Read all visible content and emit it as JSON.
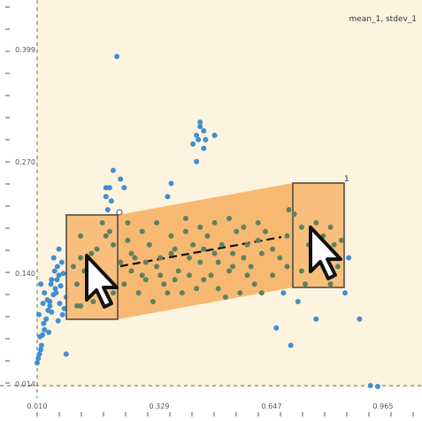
{
  "header": {
    "corner_label": "mean_1, stdev_1"
  },
  "chart_data": {
    "type": "scatter",
    "x_ticks": [
      "0.010",
      "0.329",
      "0.647",
      "0.965"
    ],
    "y_ticks": [
      "0.014",
      "0.140",
      "0.270",
      "0.399"
    ],
    "xlim": [
      0.01,
      0.965
    ],
    "ylim": [
      0.014,
      0.399
    ],
    "grid": false,
    "colors": {
      "points": "#3f8fd2",
      "band": "#f6b66e",
      "overlap_points": "#5f8060",
      "frame": "#444444"
    },
    "points": [
      [
        0.01,
        0.04
      ],
      [
        0.013,
        0.045
      ],
      [
        0.016,
        0.05
      ],
      [
        0.02,
        0.055
      ],
      [
        0.022,
        0.06
      ],
      [
        0.018,
        0.07
      ],
      [
        0.025,
        0.072
      ],
      [
        0.03,
        0.078
      ],
      [
        0.028,
        0.085
      ],
      [
        0.035,
        0.09
      ],
      [
        0.015,
        0.095
      ],
      [
        0.04,
        0.1
      ],
      [
        0.045,
        0.105
      ],
      [
        0.05,
        0.098
      ],
      [
        0.038,
        0.112
      ],
      [
        0.055,
        0.118
      ],
      [
        0.06,
        0.125
      ],
      [
        0.048,
        0.13
      ],
      [
        0.065,
        0.135
      ],
      [
        0.07,
        0.14
      ],
      [
        0.058,
        0.145
      ],
      [
        0.062,
        0.12
      ],
      [
        0.072,
        0.108
      ],
      [
        0.08,
        0.095
      ],
      [
        0.068,
        0.088
      ],
      [
        0.085,
        0.102
      ],
      [
        0.09,
        0.115
      ],
      [
        0.075,
        0.128
      ],
      [
        0.066,
        0.15
      ],
      [
        0.056,
        0.16
      ],
      [
        0.07,
        0.17
      ],
      [
        0.078,
        0.155
      ],
      [
        0.082,
        0.142
      ],
      [
        0.03,
        0.12
      ],
      [
        0.026,
        0.108
      ],
      [
        0.02,
        0.13
      ],
      [
        0.09,
        0.05
      ],
      [
        0.05,
        0.135
      ],
      [
        0.045,
        0.11
      ],
      [
        0.042,
        0.075
      ],
      [
        0.11,
        0.15
      ],
      [
        0.12,
        0.13
      ],
      [
        0.13,
        0.16
      ],
      [
        0.14,
        0.145
      ],
      [
        0.16,
        0.155
      ],
      [
        0.175,
        0.17
      ],
      [
        0.19,
        0.2
      ],
      [
        0.2,
        0.185
      ],
      [
        0.21,
        0.19
      ],
      [
        0.22,
        0.175
      ],
      [
        0.15,
        0.12
      ],
      [
        0.165,
        0.11
      ],
      [
        0.18,
        0.14
      ],
      [
        0.195,
        0.125
      ],
      [
        0.12,
        0.105
      ],
      [
        0.13,
        0.185
      ],
      [
        0.205,
        0.215
      ],
      [
        0.215,
        0.225
      ],
      [
        0.2,
        0.24
      ],
      [
        0.16,
        0.165
      ],
      [
        0.24,
        0.155
      ],
      [
        0.26,
        0.18
      ],
      [
        0.28,
        0.16
      ],
      [
        0.3,
        0.14
      ],
      [
        0.32,
        0.175
      ],
      [
        0.34,
        0.15
      ],
      [
        0.36,
        0.13
      ],
      [
        0.38,
        0.165
      ],
      [
        0.4,
        0.145
      ],
      [
        0.42,
        0.19
      ],
      [
        0.44,
        0.175
      ],
      [
        0.46,
        0.155
      ],
      [
        0.48,
        0.185
      ],
      [
        0.5,
        0.165
      ],
      [
        0.52,
        0.175
      ],
      [
        0.54,
        0.145
      ],
      [
        0.56,
        0.19
      ],
      [
        0.58,
        0.16
      ],
      [
        0.6,
        0.15
      ],
      [
        0.62,
        0.18
      ],
      [
        0.25,
        0.13
      ],
      [
        0.27,
        0.145
      ],
      [
        0.29,
        0.12
      ],
      [
        0.31,
        0.135
      ],
      [
        0.33,
        0.11
      ],
      [
        0.35,
        0.16
      ],
      [
        0.37,
        0.12
      ],
      [
        0.39,
        0.135
      ],
      [
        0.41,
        0.12
      ],
      [
        0.43,
        0.14
      ],
      [
        0.45,
        0.125
      ],
      [
        0.47,
        0.135
      ],
      [
        0.49,
        0.14
      ],
      [
        0.51,
        0.125
      ],
      [
        0.53,
        0.115
      ],
      [
        0.55,
        0.15
      ],
      [
        0.57,
        0.12
      ],
      [
        0.59,
        0.14
      ],
      [
        0.61,
        0.13
      ],
      [
        0.63,
        0.12
      ],
      [
        0.26,
        0.2
      ],
      [
        0.3,
        0.19
      ],
      [
        0.34,
        0.2
      ],
      [
        0.38,
        0.185
      ],
      [
        0.42,
        0.205
      ],
      [
        0.46,
        0.195
      ],
      [
        0.5,
        0.2
      ],
      [
        0.54,
        0.205
      ],
      [
        0.58,
        0.195
      ],
      [
        0.62,
        0.2
      ],
      [
        0.27,
        0.165
      ],
      [
        0.31,
        0.155
      ],
      [
        0.35,
        0.14
      ],
      [
        0.39,
        0.17
      ],
      [
        0.43,
        0.16
      ],
      [
        0.47,
        0.17
      ],
      [
        0.51,
        0.155
      ],
      [
        0.55,
        0.165
      ],
      [
        0.59,
        0.175
      ],
      [
        0.63,
        0.165
      ],
      [
        0.64,
        0.19
      ],
      [
        0.66,
        0.17
      ],
      [
        0.68,
        0.16
      ],
      [
        0.7,
        0.185
      ],
      [
        0.72,
        0.21
      ],
      [
        0.74,
        0.195
      ],
      [
        0.76,
        0.175
      ],
      [
        0.78,
        0.2
      ],
      [
        0.8,
        0.185
      ],
      [
        0.82,
        0.195
      ],
      [
        0.66,
        0.14
      ],
      [
        0.7,
        0.15
      ],
      [
        0.74,
        0.145
      ],
      [
        0.79,
        0.165
      ],
      [
        0.83,
        0.175
      ],
      [
        0.85,
        0.18
      ],
      [
        0.84,
        0.15
      ],
      [
        0.69,
        0.12
      ],
      [
        0.73,
        0.11
      ],
      [
        0.78,
        0.09
      ],
      [
        0.67,
        0.08
      ],
      [
        0.71,
        0.06
      ],
      [
        0.75,
        0.13
      ],
      [
        0.82,
        0.13
      ],
      [
        0.87,
        0.16
      ],
      [
        0.86,
        0.12
      ],
      [
        0.9,
        0.09
      ],
      [
        0.93,
        0.014
      ],
      [
        0.95,
        0.013
      ],
      [
        0.705,
        0.215
      ],
      [
        0.45,
        0.3
      ],
      [
        0.46,
        0.31
      ],
      [
        0.47,
        0.305
      ],
      [
        0.455,
        0.295
      ],
      [
        0.475,
        0.295
      ],
      [
        0.44,
        0.29
      ],
      [
        0.47,
        0.285
      ],
      [
        0.5,
        0.3
      ],
      [
        0.45,
        0.27
      ],
      [
        0.46,
        0.315
      ],
      [
        0.23,
        0.39
      ],
      [
        0.22,
        0.26
      ],
      [
        0.21,
        0.24
      ],
      [
        0.24,
        0.25
      ],
      [
        0.37,
        0.23
      ],
      [
        0.38,
        0.245
      ],
      [
        0.25,
        0.24
      ],
      [
        0.2,
        0.23
      ],
      [
        0.13,
        0.105
      ],
      [
        0.22,
        0.12
      ]
    ]
  }
}
